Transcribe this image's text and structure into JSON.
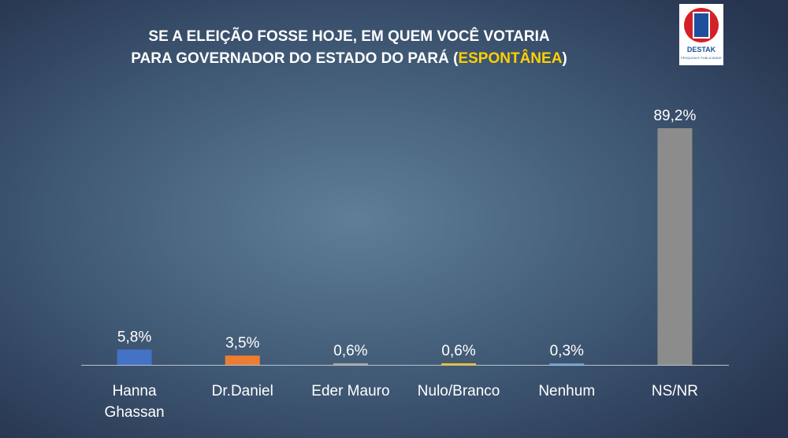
{
  "logo": {
    "name": "DESTAK",
    "tagline": "PESQUISA E PUBLICIDADE"
  },
  "chart_data": {
    "type": "bar",
    "title": [
      "SE A ELEIÇÃO FOSSE HOJE, EM QUEM VOCÊ VOTARIA",
      "PARA GOVERNADOR DO ESTADO DO PARÁ (",
      "ESPONTÂNEA",
      ")"
    ],
    "categories": [
      "Hanna\nGhassan",
      "Dr.Daniel",
      "Eder Mauro",
      "Nulo/Branco",
      "Nenhum",
      "NS/NR"
    ],
    "values": [
      5.8,
      3.5,
      0.6,
      0.6,
      0.3,
      89.2
    ],
    "value_labels": [
      "5,8%",
      "3,5%",
      "0,6%",
      "0,6%",
      "0,3%",
      "89,2%"
    ],
    "colors": [
      "#4472c4",
      "#ed7d31",
      "#a5a5a5",
      "#ffc000",
      "#5b9bd5",
      "#8c8c8c"
    ]
  }
}
